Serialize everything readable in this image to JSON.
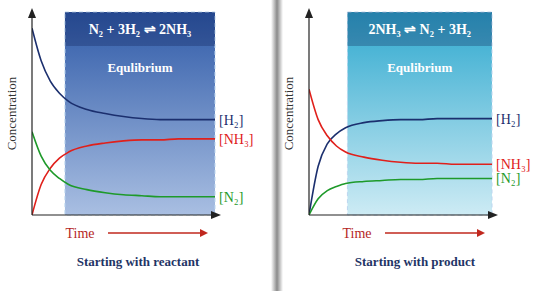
{
  "chart_data": [
    {
      "type": "line",
      "title": "Starting with reactant",
      "x_label": "Time",
      "y_label": "Concentration",
      "equilibrium": {
        "reaction": "N₂ + 3H₂ ⇌ 2NH₃",
        "label": "Equlibrium",
        "x_start": 1.8,
        "x_end": 10
      },
      "x": [
        0,
        0.5,
        1,
        1.5,
        2,
        3,
        4,
        5,
        6,
        7,
        8,
        9,
        10
      ],
      "series": [
        {
          "name": "[H₂]",
          "color": "#1b2f6e",
          "values": [
            9.2,
            7.6,
            6.6,
            6.0,
            5.6,
            5.2,
            5.0,
            4.85,
            4.75,
            4.7,
            4.7,
            4.7,
            4.7
          ]
        },
        {
          "name": "[NH₃]",
          "color": "#e0201b",
          "values": [
            0,
            1.5,
            2.3,
            2.8,
            3.1,
            3.4,
            3.55,
            3.65,
            3.7,
            3.7,
            3.75,
            3.75,
            3.75
          ]
        },
        {
          "name": "[N₂]",
          "color": "#1e9a2a",
          "values": [
            4.1,
            2.9,
            2.2,
            1.8,
            1.5,
            1.25,
            1.1,
            1.0,
            0.95,
            0.9,
            0.9,
            0.9,
            0.9
          ]
        }
      ],
      "xlim": [
        0,
        10
      ],
      "ylim": [
        0,
        10
      ],
      "tick_labels": false
    },
    {
      "type": "line",
      "title": "Starting with product",
      "x_label": "Time",
      "y_label": "Concentration",
      "equilibrium": {
        "reaction": "2NH₃ ⇌ N₂ + 3H₂",
        "label": "Equlibrium",
        "x_start": 2.1,
        "x_end": 10
      },
      "x": [
        0,
        0.5,
        1,
        1.5,
        2,
        3,
        4,
        5,
        6,
        7,
        8,
        9,
        10
      ],
      "series": [
        {
          "name": "[H₂]",
          "color": "#1b2f6e",
          "values": [
            0,
            2.4,
            3.5,
            4.0,
            4.3,
            4.55,
            4.65,
            4.7,
            4.7,
            4.75,
            4.75,
            4.75,
            4.75
          ]
        },
        {
          "name": "[NH₃]",
          "color": "#e0201b",
          "values": [
            6.2,
            4.7,
            3.9,
            3.4,
            3.1,
            2.85,
            2.7,
            2.6,
            2.55,
            2.55,
            2.5,
            2.5,
            2.5
          ]
        },
        {
          "name": "[N₂]",
          "color": "#1e9a2a",
          "values": [
            0,
            0.8,
            1.2,
            1.4,
            1.55,
            1.65,
            1.7,
            1.75,
            1.75,
            1.8,
            1.8,
            1.8,
            1.8
          ]
        }
      ],
      "xlim": [
        0,
        10
      ],
      "ylim": [
        0,
        10
      ],
      "tick_labels": false
    }
  ]
}
